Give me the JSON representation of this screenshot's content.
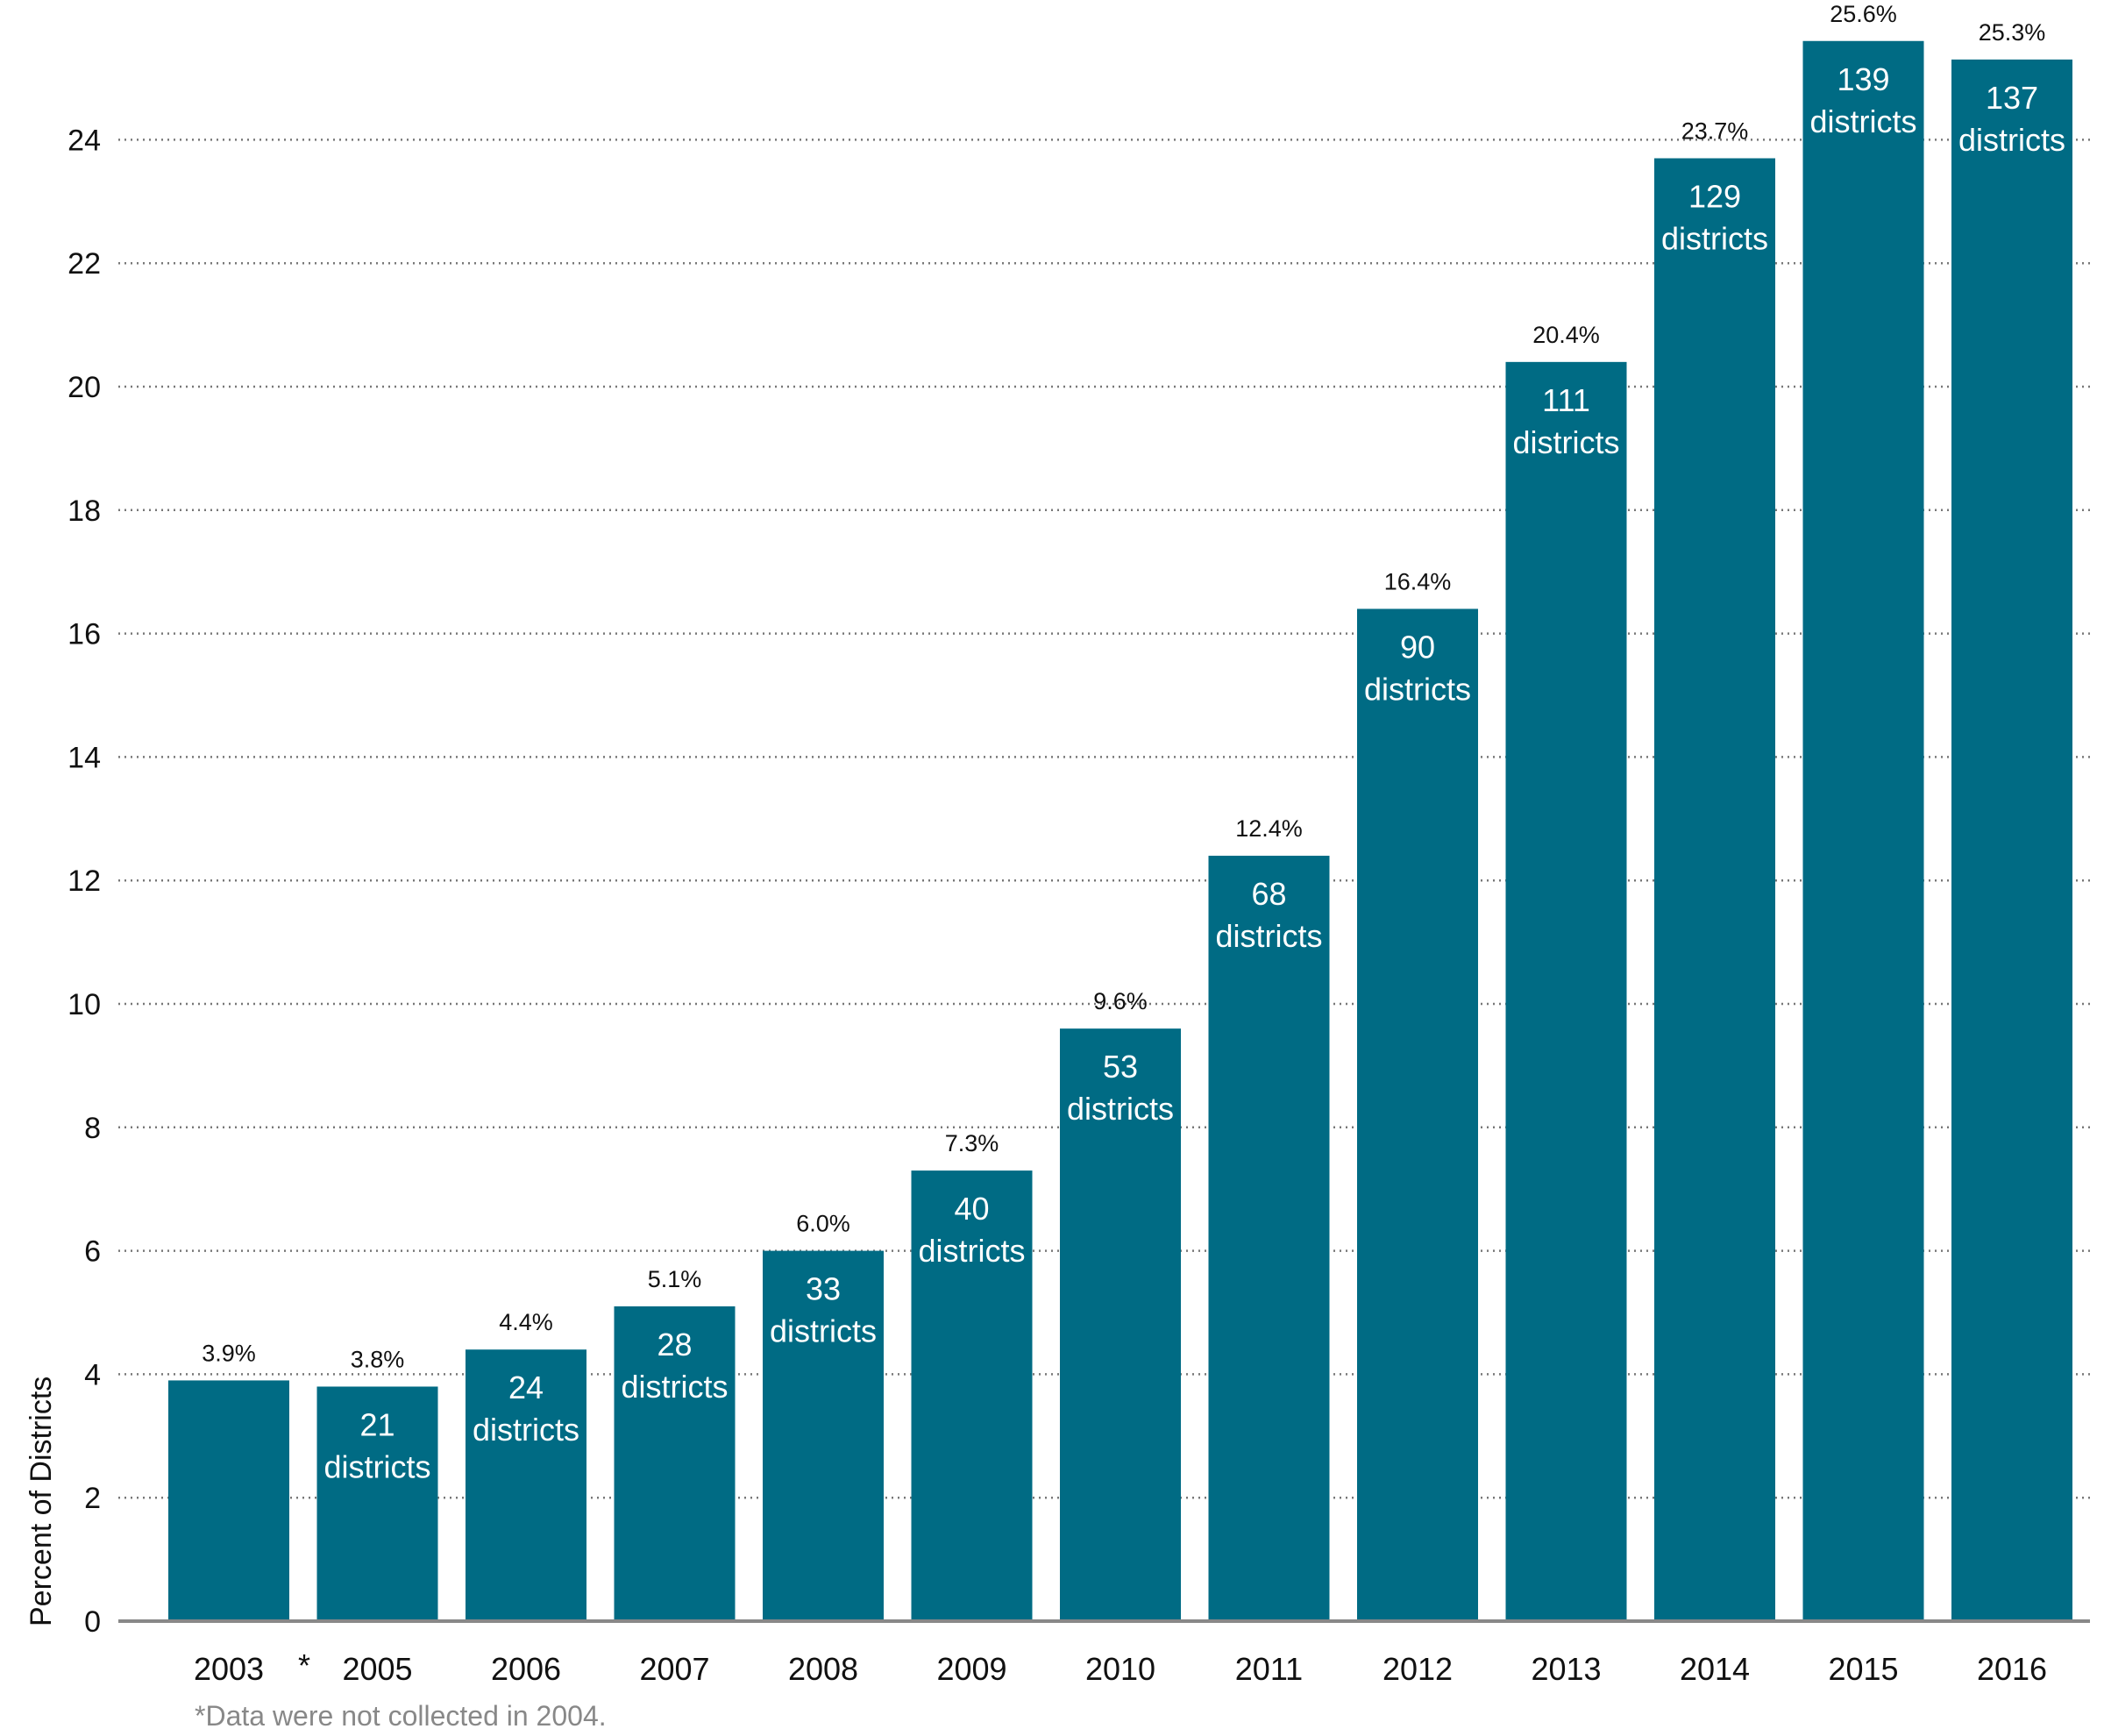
{
  "chart_data": {
    "type": "bar",
    "title": "",
    "xlabel": "",
    "ylabel": "Percent of Districts",
    "ylim": [
      0,
      25.6
    ],
    "yticks": [
      0,
      2,
      4,
      6,
      8,
      10,
      12,
      14,
      16,
      18,
      20,
      22,
      24
    ],
    "grid": "horizontal dotted",
    "categories": [
      "2003",
      "2005",
      "2006",
      "2007",
      "2008",
      "2009",
      "2010",
      "2011",
      "2012",
      "2013",
      "2014",
      "2015",
      "2016"
    ],
    "values": [
      3.9,
      3.8,
      4.4,
      5.1,
      6.0,
      7.3,
      9.6,
      12.4,
      16.4,
      20.4,
      23.7,
      25.6,
      25.3
    ],
    "value_labels": [
      "3.9%",
      "3.8%",
      "4.4%",
      "5.1%",
      "6.0%",
      "7.3%",
      "9.6%",
      "12.4%",
      "16.4%",
      "20.4%",
      "23.7%",
      "25.6%",
      "25.3%"
    ],
    "district_counts": [
      null,
      "21",
      "24",
      "28",
      "33",
      "40",
      "53",
      "68",
      "90",
      "111",
      "129",
      "139",
      "137"
    ],
    "district_unit": "districts",
    "gap_marker": "*",
    "footnote": "*Data were not collected in 2004.",
    "bar_color": "#006B84"
  }
}
